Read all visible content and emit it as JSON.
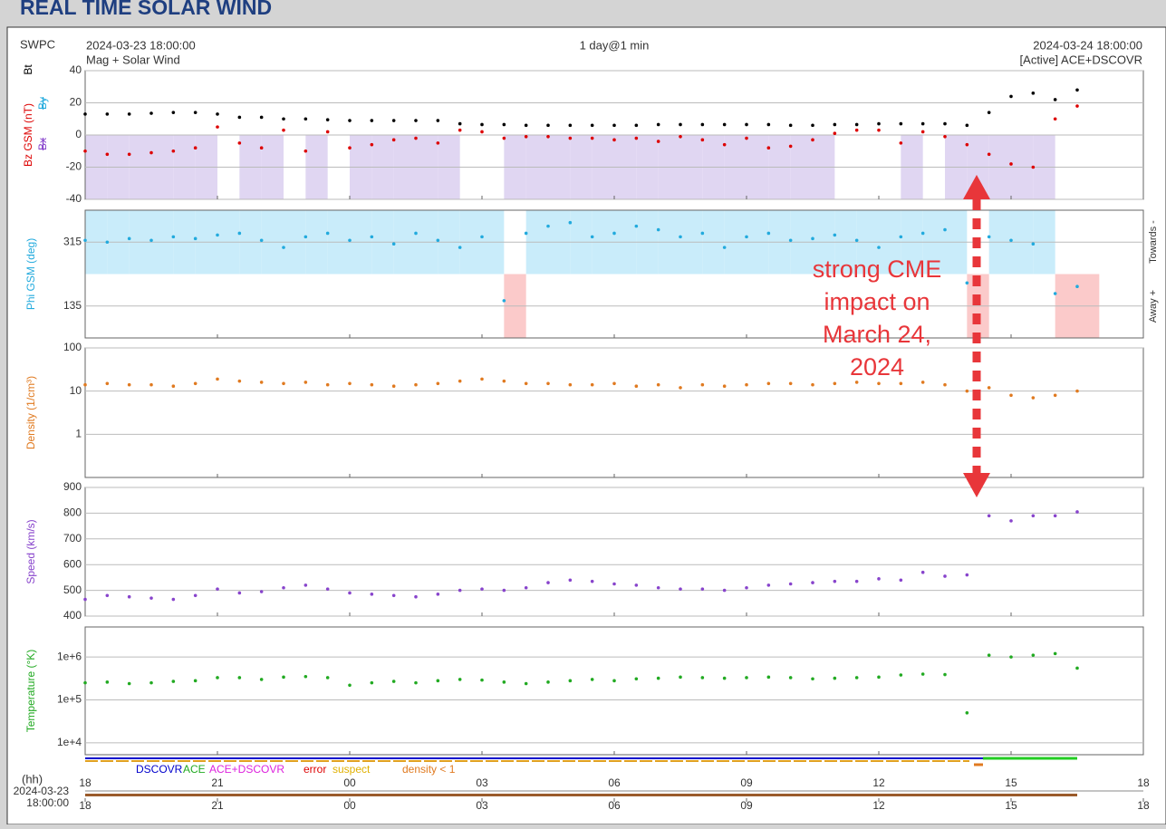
{
  "header": {
    "title": "REAL TIME SOLAR WIND",
    "source": "SWPC",
    "start": "2024-03-23 18:00:00",
    "product": "Mag + Solar Wind",
    "span": "1 day@1 min",
    "end": "2024-03-24 18:00:00",
    "spacecraft": "[Active] ACE+DSCOVR",
    "start_date": "2024-03-23",
    "start_time": "18:00:00"
  },
  "annotation": [
    "strong CME",
    "impact on",
    "March 24,",
    "2024"
  ],
  "status_legend": [
    {
      "text": "DSCOVR",
      "color": "#0000cc"
    },
    {
      "text": "ACE",
      "color": "#22aa22"
    },
    {
      "text": "ACE+DSCOVR",
      "color": "#dd22dd"
    },
    {
      "text": "error",
      "color": "#dd0000"
    },
    {
      "text": "suspect",
      "color": "#e0b000"
    },
    {
      "text": "density < 1",
      "color": "#e07a20"
    }
  ],
  "chart_data": [
    {
      "type": "scatter",
      "ylabels": [
        {
          "text": "Bt",
          "color": "#000000"
        },
        {
          "text": "Bz GSM (nT)",
          "color": "#dd0000"
        },
        {
          "text": "Bx",
          "color": "#8844cc"
        },
        {
          "text": "By",
          "color": "#22aadd"
        }
      ],
      "ylim": [
        -40,
        40
      ],
      "yticks": [
        -40,
        -20,
        0,
        20,
        40
      ],
      "xlim": [
        0,
        24
      ],
      "shade_color": "#e0d6f2",
      "x": [
        0,
        0.5,
        1,
        1.5,
        2,
        2.5,
        3,
        3.5,
        4,
        4.5,
        5,
        5.5,
        6,
        6.5,
        7,
        7.5,
        8,
        8.5,
        9,
        9.5,
        10,
        10.5,
        11,
        11.5,
        12,
        12.5,
        13,
        13.5,
        14,
        14.5,
        15,
        15.5,
        16,
        16.5,
        17,
        17.5,
        18,
        18.5,
        19,
        19.5,
        20,
        20.5,
        21,
        21.5,
        22,
        22.5
      ],
      "series": [
        {
          "name": "Bt",
          "color": "#000000",
          "values": [
            13,
            13,
            13,
            13.5,
            14,
            14,
            13,
            11,
            11,
            10,
            10,
            9.5,
            9,
            9,
            9,
            9,
            9,
            7,
            6.5,
            6.5,
            6,
            6,
            6,
            6,
            6,
            6,
            6.5,
            6.5,
            6.5,
            6.5,
            6.5,
            6.5,
            6,
            6,
            6.5,
            6.5,
            7,
            7,
            7,
            7,
            6,
            14,
            24,
            26,
            22,
            28
          ]
        },
        {
          "name": "Bz",
          "color": "#dd0000",
          "values": [
            -10,
            -12,
            -12,
            -11,
            -10,
            -8,
            5,
            -5,
            -8,
            3,
            -10,
            2,
            -8,
            -6,
            -3,
            -2,
            -5,
            3,
            2,
            -2,
            -1,
            -1,
            -2,
            -2,
            -3,
            -2,
            -4,
            -1,
            -3,
            -6,
            -2,
            -8,
            -7,
            -3,
            1,
            3,
            3,
            -5,
            2,
            -1,
            -6,
            -12,
            -18,
            -20,
            10,
            18
          ]
        }
      ]
    },
    {
      "type": "scatter",
      "ylabels": [
        {
          "text": "Phi GSM (deg)",
          "color": "#22aadd"
        }
      ],
      "right_labels": [
        "Towards -",
        "Away +"
      ],
      "ylim": [
        45,
        405
      ],
      "yticks": [
        135,
        315
      ],
      "xlim": [
        0,
        24
      ],
      "split": 225,
      "shade_colors": [
        "#c9ecfa",
        "#fbcaca"
      ],
      "x": [
        0,
        0.5,
        1,
        1.5,
        2,
        2.5,
        3,
        3.5,
        4,
        4.5,
        5,
        5.5,
        6,
        6.5,
        7,
        7.5,
        8,
        8.5,
        9,
        9.5,
        10,
        10.5,
        11,
        11.5,
        12,
        12.5,
        13,
        13.5,
        14,
        14.5,
        15,
        15.5,
        16,
        16.5,
        17,
        17.5,
        18,
        18.5,
        19,
        19.5,
        20,
        20.5,
        21,
        21.5,
        22,
        22.5
      ],
      "series": [
        {
          "name": "Phi",
          "color": "#22aadd",
          "values": [
            320,
            315,
            325,
            320,
            330,
            325,
            335,
            340,
            320,
            300,
            330,
            340,
            320,
            330,
            310,
            340,
            320,
            300,
            330,
            150,
            340,
            360,
            370,
            330,
            340,
            360,
            350,
            330,
            340,
            300,
            330,
            340,
            320,
            325,
            335,
            320,
            300,
            330,
            340,
            350,
            200,
            330,
            320,
            310,
            170,
            190
          ]
        }
      ]
    },
    {
      "type": "scatter",
      "log": true,
      "ylabels": [
        {
          "text": "Density (1/cm³)",
          "color": "#e07a20"
        }
      ],
      "ylim": [
        0.1,
        100
      ],
      "yticks": [
        1,
        10,
        100
      ],
      "xlim": [
        0,
        24
      ],
      "x": [
        0,
        0.5,
        1,
        1.5,
        2,
        2.5,
        3,
        3.5,
        4,
        4.5,
        5,
        5.5,
        6,
        6.5,
        7,
        7.5,
        8,
        8.5,
        9,
        9.5,
        10,
        10.5,
        11,
        11.5,
        12,
        12.5,
        13,
        13.5,
        14,
        14.5,
        15,
        15.5,
        16,
        16.5,
        17,
        17.5,
        18,
        18.5,
        19,
        19.5,
        20,
        20.5,
        21,
        21.5,
        22,
        22.5
      ],
      "series": [
        {
          "name": "Density",
          "color": "#e07a20",
          "values": [
            14,
            15,
            14,
            14,
            13,
            15,
            19,
            17,
            16,
            15,
            16,
            14,
            15,
            14,
            13,
            14,
            15,
            17,
            19,
            17,
            15,
            15,
            14,
            14,
            15,
            13,
            14,
            12,
            14,
            13,
            14,
            15,
            15,
            14,
            15,
            16,
            15,
            15,
            16,
            14,
            10,
            12,
            8,
            7,
            8,
            10
          ]
        }
      ]
    },
    {
      "type": "scatter",
      "ylabels": [
        {
          "text": "Speed (km/s)",
          "color": "#8844cc"
        }
      ],
      "ylim": [
        400,
        900
      ],
      "yticks": [
        400,
        500,
        600,
        700,
        800,
        900
      ],
      "xlim": [
        0,
        24
      ],
      "x": [
        0,
        0.5,
        1,
        1.5,
        2,
        2.5,
        3,
        3.5,
        4,
        4.5,
        5,
        5.5,
        6,
        6.5,
        7,
        7.5,
        8,
        8.5,
        9,
        9.5,
        10,
        10.5,
        11,
        11.5,
        12,
        12.5,
        13,
        13.5,
        14,
        14.5,
        15,
        15.5,
        16,
        16.5,
        17,
        17.5,
        18,
        18.5,
        19,
        19.5,
        20,
        20.5,
        21,
        21.5,
        22,
        22.5
      ],
      "series": [
        {
          "name": "Speed",
          "color": "#8844cc",
          "values": [
            465,
            480,
            475,
            470,
            465,
            480,
            505,
            490,
            495,
            510,
            520,
            505,
            490,
            485,
            480,
            475,
            485,
            500,
            505,
            500,
            510,
            530,
            540,
            535,
            525,
            520,
            510,
            505,
            505,
            500,
            510,
            520,
            525,
            530,
            535,
            535,
            545,
            540,
            570,
            555,
            560,
            790,
            770,
            790,
            790,
            805
          ]
        }
      ]
    },
    {
      "type": "scatter",
      "log": true,
      "ylabels": [
        {
          "text": "Temperature (°K)",
          "color": "#22aa22"
        }
      ],
      "ylim": [
        5300,
        5000000
      ],
      "yticks": [
        {
          "value": 10000,
          "label": "1e+4"
        },
        {
          "value": 100000,
          "label": "1e+5"
        },
        {
          "value": 1000000,
          "label": "1e+6"
        }
      ],
      "xlim": [
        0,
        24
      ],
      "xlabel": "(hh)",
      "xticks": [
        {
          "value": 0,
          "label": "18"
        },
        {
          "value": 3,
          "label": "21"
        },
        {
          "value": 6,
          "label": "00"
        },
        {
          "value": 9,
          "label": "03"
        },
        {
          "value": 12,
          "label": "06"
        },
        {
          "value": 15,
          "label": "09"
        },
        {
          "value": 18,
          "label": "12"
        },
        {
          "value": 21,
          "label": "15"
        },
        {
          "value": 24,
          "label": "18"
        }
      ],
      "x": [
        0,
        0.5,
        1,
        1.5,
        2,
        2.5,
        3,
        3.5,
        4,
        4.5,
        5,
        5.5,
        6,
        6.5,
        7,
        7.5,
        8,
        8.5,
        9,
        9.5,
        10,
        10.5,
        11,
        11.5,
        12,
        12.5,
        13,
        13.5,
        14,
        14.5,
        15,
        15.5,
        16,
        16.5,
        17,
        17.5,
        18,
        18.5,
        19,
        19.5,
        20,
        20.5,
        21,
        21.5,
        22,
        22.5
      ],
      "series": [
        {
          "name": "Temperature",
          "color": "#22aa22",
          "values": [
            250000,
            260000,
            240000,
            250000,
            270000,
            280000,
            330000,
            330000,
            300000,
            340000,
            350000,
            330000,
            220000,
            250000,
            270000,
            250000,
            280000,
            300000,
            290000,
            260000,
            240000,
            260000,
            280000,
            300000,
            280000,
            310000,
            320000,
            340000,
            330000,
            320000,
            330000,
            340000,
            330000,
            310000,
            320000,
            330000,
            340000,
            380000,
            400000,
            390000,
            50000,
            1100000,
            1000000,
            1100000,
            1200000,
            550000
          ]
        }
      ]
    }
  ]
}
